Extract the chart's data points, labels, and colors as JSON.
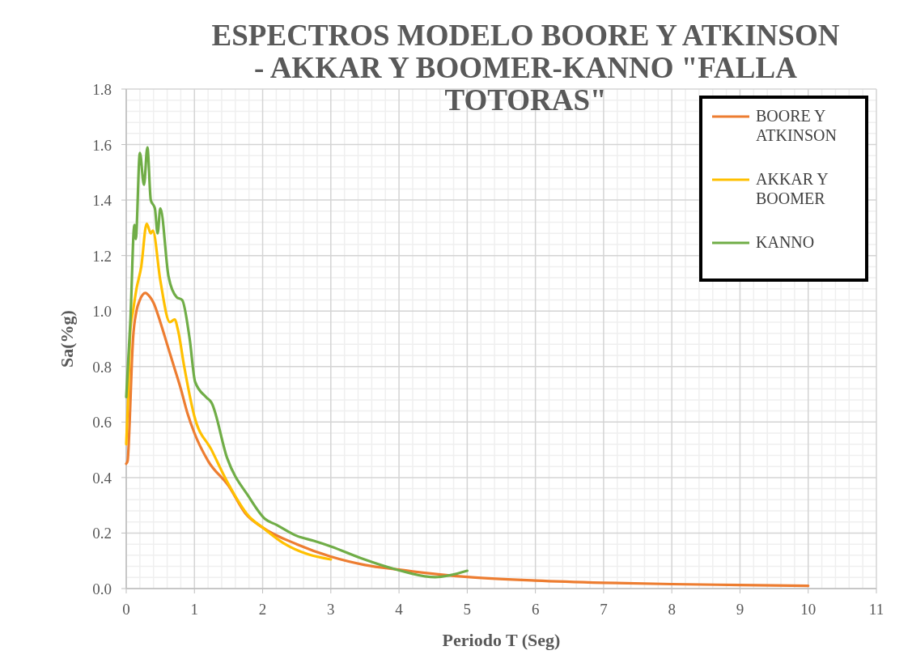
{
  "chart_data": {
    "type": "line",
    "title": "ESPECTROS MODELO BOORE Y ATKINSON - AKKAR Y BOOMER-KANNO \"FALLA TOTORAS\"",
    "xlabel": "Periodo T (Seg)",
    "ylabel": "Sa(%g)",
    "xlim": [
      0,
      11
    ],
    "xticks": [
      0,
      1,
      2,
      3,
      4,
      5,
      6,
      7,
      8,
      9,
      10,
      11
    ],
    "ylim": [
      0,
      1.8
    ],
    "yticks": [
      {
        "value": 0,
        "label": "0.0"
      },
      {
        "value": 0.2,
        "label": "0.2"
      },
      {
        "value": 0.4,
        "label": "0.4"
      },
      {
        "value": 0.6,
        "label": "0.6"
      },
      {
        "value": 0.8,
        "label": "0.8"
      },
      {
        "value": 1.0,
        "label": "1.0"
      },
      {
        "value": 1.2,
        "label": "1.2"
      },
      {
        "value": 1.4,
        "label": "1.4"
      },
      {
        "value": 1.6,
        "label": "1.6"
      },
      {
        "value": 1.8,
        "label": "1.8"
      }
    ],
    "grid": true,
    "legend": "top right",
    "line_style": "solid",
    "marker": "none",
    "series": [
      {
        "name": "BOORE Y ATKINSON",
        "color": "#ed7d31",
        "x": [
          0,
          0.02,
          0.05,
          0.08,
          0.1,
          0.15,
          0.2,
          0.28,
          0.35,
          0.4,
          0.5,
          0.6,
          0.7,
          0.8,
          0.9,
          1.0,
          1.2,
          1.5,
          1.75,
          2,
          2.5,
          3,
          3.5,
          4,
          5,
          6,
          7,
          8,
          9,
          10
        ],
        "values": [
          0.45,
          0.46,
          0.6,
          0.8,
          0.9,
          1.0,
          1.04,
          1.065,
          1.05,
          1.03,
          0.96,
          0.88,
          0.8,
          0.72,
          0.63,
          0.56,
          0.46,
          0.37,
          0.27,
          0.22,
          0.16,
          0.115,
          0.085,
          0.068,
          0.042,
          0.029,
          0.021,
          0.016,
          0.013,
          0.01
        ]
      },
      {
        "name": "AKKAR Y BOOMER",
        "color": "#ffc000",
        "x": [
          0,
          0.03,
          0.06,
          0.1,
          0.15,
          0.22,
          0.3,
          0.36,
          0.39,
          0.5,
          0.64,
          0.71,
          0.76,
          0.85,
          1.0,
          1.25,
          1.48,
          1.8,
          2.0,
          2.31,
          2.67,
          3.0
        ],
        "values": [
          0.52,
          0.7,
          0.93,
          1.0,
          1.08,
          1.16,
          1.315,
          1.28,
          1.29,
          1.11,
          0.96,
          0.97,
          0.93,
          0.8,
          0.62,
          0.5,
          0.385,
          0.26,
          0.22,
          0.163,
          0.123,
          0.105
        ]
      },
      {
        "name": "KANNO",
        "color": "#70ad47",
        "x": [
          0,
          0.06,
          0.12,
          0.14,
          0.2,
          0.26,
          0.31,
          0.36,
          0.42,
          0.46,
          0.5,
          0.62,
          0.74,
          0.82,
          0.93,
          1.01,
          1.17,
          1.25,
          1.48,
          1.8,
          2.04,
          2.2,
          2.5,
          2.75,
          3.0,
          3.46,
          3.94,
          4.53,
          5.0
        ],
        "values": [
          0.69,
          0.96,
          1.31,
          1.26,
          1.57,
          1.455,
          1.59,
          1.4,
          1.37,
          1.28,
          1.37,
          1.125,
          1.05,
          1.04,
          0.9,
          0.745,
          0.69,
          0.67,
          0.47,
          0.33,
          0.25,
          0.23,
          0.19,
          0.172,
          0.152,
          0.108,
          0.07,
          0.041,
          0.064
        ]
      }
    ]
  }
}
